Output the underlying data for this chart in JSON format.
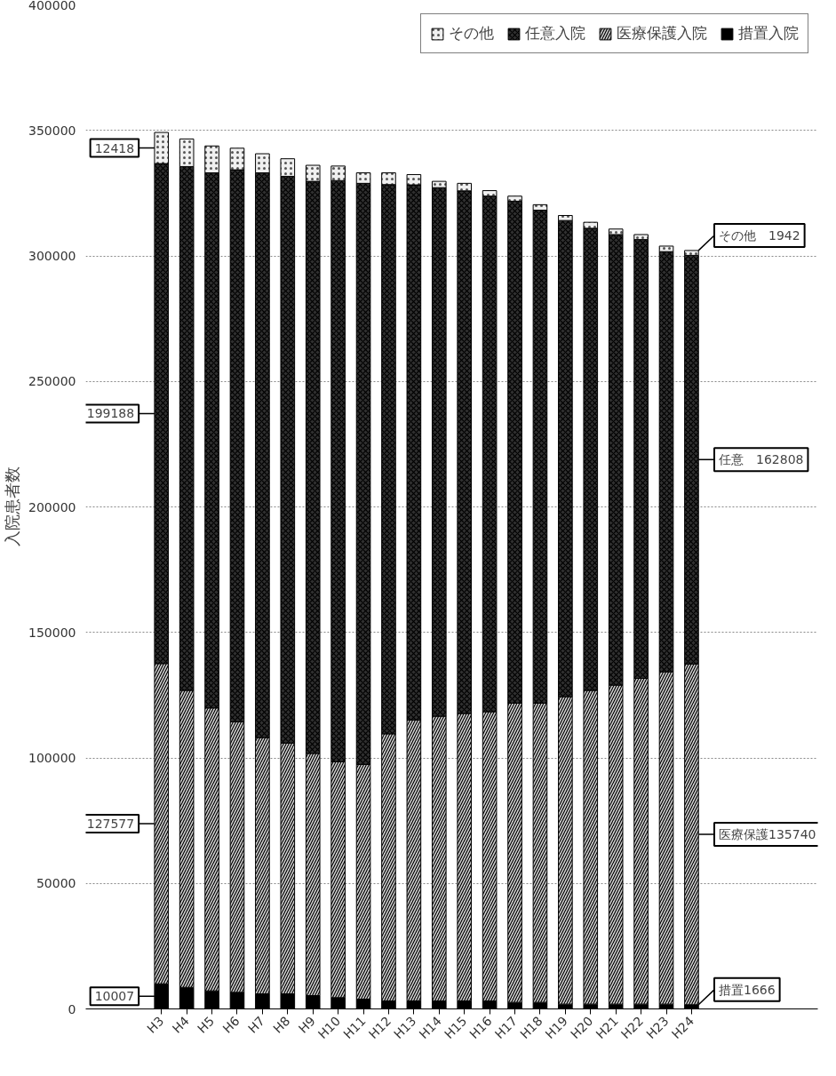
{
  "chart_data": {
    "type": "bar",
    "stacked": true,
    "ylabel": "入院患者数",
    "categories": [
      "H3",
      "H4",
      "H5",
      "H6",
      "H7",
      "H8",
      "H9",
      "H10",
      "H11",
      "H12",
      "H13",
      "H14",
      "H15",
      "H16",
      "H17",
      "H18",
      "H19",
      "H20",
      "H21",
      "H22",
      "H23",
      "H24"
    ],
    "series": [
      {
        "name": "措置入院",
        "color": "#000000",
        "values": [
          10007,
          8600,
          7200,
          6600,
          6000,
          6000,
          5300,
          4500,
          3900,
          3200,
          3200,
          3200,
          3200,
          3200,
          2600,
          2600,
          1900,
          1900,
          1900,
          1900,
          1900,
          1666
        ],
        "value_labels": [
          "10007",
          null,
          null,
          null,
          null,
          null,
          null,
          null,
          null,
          null,
          null,
          null,
          null,
          null,
          null,
          null,
          null,
          null,
          null,
          null,
          null,
          "措置1666"
        ]
      },
      {
        "name": "医療保護入院",
        "color": "#d0d0d0",
        "values": [
          127577,
          118300,
          112700,
          107800,
          102100,
          99900,
          96500,
          94000,
          93500,
          106400,
          111900,
          113400,
          114500,
          115200,
          119200,
          119200,
          122500,
          125000,
          127100,
          129800,
          132400,
          135740
        ],
        "value_labels": [
          "127577",
          null,
          null,
          null,
          null,
          null,
          null,
          null,
          null,
          null,
          null,
          null,
          null,
          null,
          null,
          null,
          null,
          null,
          null,
          null,
          null,
          "医療保護135740"
        ]
      },
      {
        "name": "任意入院",
        "color": "#303030",
        "values": [
          199188,
          208700,
          213200,
          219900,
          225000,
          225800,
          227900,
          231500,
          231500,
          218800,
          213200,
          210600,
          208200,
          205400,
          200000,
          196400,
          189700,
          184100,
          179500,
          174800,
          167400,
          162808
        ],
        "value_labels": [
          "199188",
          null,
          null,
          null,
          null,
          null,
          null,
          null,
          null,
          null,
          null,
          null,
          null,
          null,
          null,
          null,
          null,
          null,
          null,
          null,
          null,
          "任意　162808"
        ]
      },
      {
        "name": "その他",
        "color": "#f0f0f0",
        "values": [
          12418,
          11000,
          10700,
          8600,
          7600,
          7000,
          6400,
          5800,
          4200,
          4700,
          4100,
          2500,
          3000,
          2200,
          2000,
          2200,
          2000,
          2400,
          2200,
          2000,
          2200,
          1942
        ],
        "value_labels": [
          "12418",
          null,
          null,
          null,
          null,
          null,
          null,
          null,
          null,
          null,
          null,
          null,
          null,
          null,
          null,
          null,
          null,
          null,
          null,
          null,
          null,
          "その他　1942"
        ]
      }
    ],
    "ylim": [
      0,
      400000
    ],
    "yticks": [
      0,
      50000,
      100000,
      150000,
      200000,
      250000,
      300000,
      350000,
      400000
    ],
    "grid": "y",
    "legend": "top right"
  }
}
